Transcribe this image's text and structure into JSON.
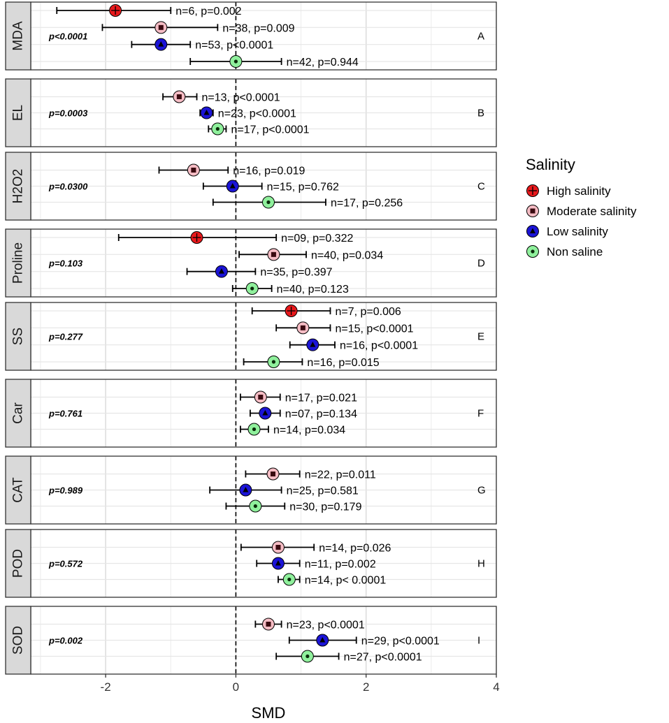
{
  "chart_data": {
    "type": "scatter",
    "subtype": "forest-plot-faceted",
    "xlabel": "SMD",
    "xlim": [
      -3.15,
      4.0
    ],
    "xticks": [
      -2,
      0,
      2,
      4
    ],
    "reference_line": 0,
    "grid": true,
    "legend": {
      "title": "Salinity",
      "placement": "right",
      "items": [
        {
          "key": "high",
          "label": "High salinity",
          "color": "#e8191c",
          "marker": "plus"
        },
        {
          "key": "moderate",
          "label": "Moderate salinity",
          "color": "#f5bcc4",
          "marker": "square"
        },
        {
          "key": "low",
          "label": "Low salinity",
          "color": "#1b14d6",
          "marker": "triangle"
        },
        {
          "key": "non",
          "label": "Non saline",
          "color": "#8ff09c",
          "marker": "dot"
        }
      ]
    },
    "panels": [
      {
        "name": "MDA",
        "letter": "A",
        "pvalue": "p<0.0001",
        "rows": [
          {
            "group": "high",
            "smd": -1.85,
            "lo": -2.75,
            "hi": -1.0,
            "label": "n=6, p=0.002"
          },
          {
            "group": "moderate",
            "smd": -1.15,
            "lo": -2.05,
            "hi": -0.28,
            "label": "n=38, p=0.009"
          },
          {
            "group": "low",
            "smd": -1.15,
            "lo": -1.6,
            "hi": -0.7,
            "label": "n=53, p<0.0001"
          },
          {
            "group": "non",
            "smd": 0.0,
            "lo": -0.7,
            "hi": 0.7,
            "label": "n=42, p=0.944"
          }
        ]
      },
      {
        "name": "EL",
        "letter": "B",
        "pvalue": "p=0.0003",
        "rows": [
          {
            "group": "moderate",
            "smd": -0.87,
            "lo": -1.12,
            "hi": -0.6,
            "label": "n=13, p<0.0001"
          },
          {
            "group": "low",
            "smd": -0.45,
            "lo": -0.55,
            "hi": -0.35,
            "label": "n=23, p<0.0001"
          },
          {
            "group": "non",
            "smd": -0.28,
            "lo": -0.42,
            "hi": -0.15,
            "label": "n=17, p<0.0001"
          }
        ]
      },
      {
        "name": "H2O2",
        "letter": "C",
        "pvalue": "p=0.0300",
        "rows": [
          {
            "group": "moderate",
            "smd": -0.65,
            "lo": -1.18,
            "hi": -0.12,
            "label": "n=16, p=0.019"
          },
          {
            "group": "low",
            "smd": -0.05,
            "lo": -0.5,
            "hi": 0.4,
            "label": "n=15, p=0.762"
          },
          {
            "group": "non",
            "smd": 0.5,
            "lo": -0.35,
            "hi": 1.38,
            "label": "n=17, p=0.256"
          }
        ]
      },
      {
        "name": "Proline",
        "letter": "D",
        "pvalue": "p=0.103",
        "rows": [
          {
            "group": "high",
            "smd": -0.6,
            "lo": -1.8,
            "hi": 0.62,
            "label": "n=09, p=0.322"
          },
          {
            "group": "moderate",
            "smd": 0.58,
            "lo": 0.05,
            "hi": 1.08,
            "label": "n=40, p=0.034"
          },
          {
            "group": "low",
            "smd": -0.22,
            "lo": -0.75,
            "hi": 0.3,
            "label": "n=35, p=0.397"
          },
          {
            "group": "non",
            "smd": 0.25,
            "lo": -0.05,
            "hi": 0.55,
            "label": "n=40, p=0.123"
          }
        ]
      },
      {
        "name": "SS",
        "letter": "E",
        "pvalue": "p=0.277",
        "rows": [
          {
            "group": "high",
            "smd": 0.85,
            "lo": 0.25,
            "hi": 1.45,
            "label": "n=7, p=0.006"
          },
          {
            "group": "moderate",
            "smd": 1.03,
            "lo": 0.62,
            "hi": 1.45,
            "label": "n=15,  p<0.0001"
          },
          {
            "group": "low",
            "smd": 1.18,
            "lo": 0.83,
            "hi": 1.52,
            "label": "n=16,  p<0.0001"
          },
          {
            "group": "non",
            "smd": 0.58,
            "lo": 0.12,
            "hi": 1.02,
            "label": "n=16, p=0.015"
          }
        ]
      },
      {
        "name": "Car",
        "letter": "F",
        "pvalue": "p=0.761",
        "rows": [
          {
            "group": "moderate",
            "smd": 0.38,
            "lo": 0.07,
            "hi": 0.68,
            "label": "n=17, p=0.021"
          },
          {
            "group": "low",
            "smd": 0.45,
            "lo": 0.22,
            "hi": 0.68,
            "label": "n=07, p=0.134"
          },
          {
            "group": "non",
            "smd": 0.28,
            "lo": 0.07,
            "hi": 0.5,
            "label": "n=14, p=0.034"
          }
        ]
      },
      {
        "name": "CAT",
        "letter": "G",
        "pvalue": "p=0.989",
        "rows": [
          {
            "group": "moderate",
            "smd": 0.57,
            "lo": 0.15,
            "hi": 0.98,
            "label": "n=22, p=0.011"
          },
          {
            "group": "low",
            "smd": 0.15,
            "lo": -0.4,
            "hi": 0.7,
            "label": "n=25, p=0.581"
          },
          {
            "group": "non",
            "smd": 0.3,
            "lo": -0.15,
            "hi": 0.75,
            "label": "n=30, p=0.179"
          }
        ]
      },
      {
        "name": "POD",
        "letter": "H",
        "pvalue": "p=0.572",
        "rows": [
          {
            "group": "moderate",
            "smd": 0.65,
            "lo": 0.08,
            "hi": 1.2,
            "label": "n=14, p=0.026"
          },
          {
            "group": "low",
            "smd": 0.65,
            "lo": 0.32,
            "hi": 0.98,
            "label": "n=11, p=0.002"
          },
          {
            "group": "non",
            "smd": 0.82,
            "lo": 0.65,
            "hi": 0.98,
            "label": "n=14, p< 0.0001"
          }
        ]
      },
      {
        "name": "SOD",
        "letter": "I",
        "pvalue": "p=0.002",
        "rows": [
          {
            "group": "moderate",
            "smd": 0.5,
            "lo": 0.3,
            "hi": 0.7,
            "label": "n=23, p<0.0001"
          },
          {
            "group": "low",
            "smd": 1.33,
            "lo": 0.82,
            "hi": 1.85,
            "label": "n=29, p<0.0001"
          },
          {
            "group": "non",
            "smd": 1.1,
            "lo": 0.62,
            "hi": 1.58,
            "label": "n=27, p<0.0001"
          }
        ]
      }
    ]
  }
}
